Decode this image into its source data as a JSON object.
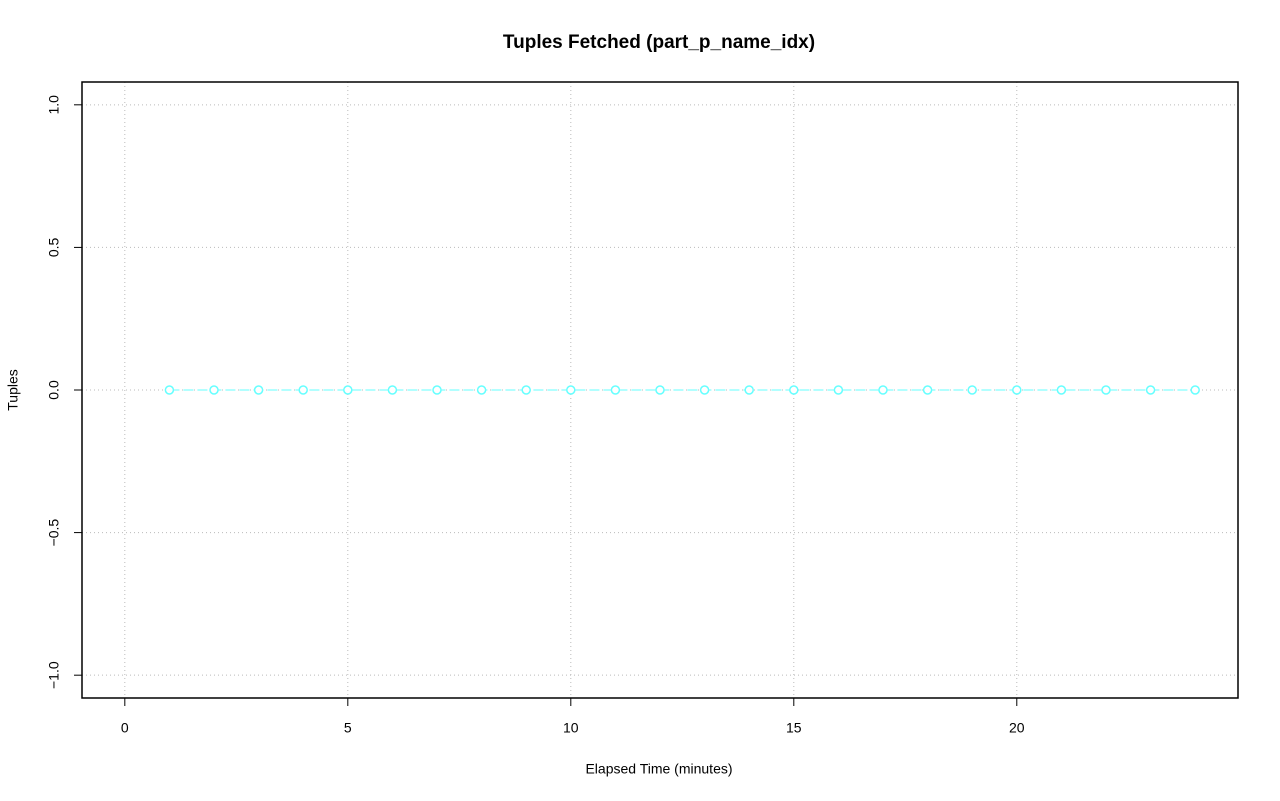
{
  "chart_data": {
    "type": "line",
    "title": "Tuples Fetched (part_p_name_idx)",
    "x_label": "Elapsed Time (minutes)",
    "y_label": "Tuples",
    "x": [
      1,
      2,
      3,
      4,
      5,
      6,
      7,
      8,
      9,
      10,
      11,
      12,
      13,
      14,
      15,
      16,
      17,
      18,
      19,
      20,
      21,
      22,
      23,
      24
    ],
    "values": [
      0,
      0,
      0,
      0,
      0,
      0,
      0,
      0,
      0,
      0,
      0,
      0,
      0,
      0,
      0,
      0,
      0,
      0,
      0,
      0,
      0,
      0,
      0,
      0
    ],
    "color": "#66ffff",
    "xlim": [
      -0.96,
      24.96
    ],
    "ylim": [
      -1.08,
      1.08
    ],
    "xticks": [
      0,
      5,
      10,
      15,
      20
    ],
    "yticks": [
      {
        "value": -1,
        "label": "−1.0"
      },
      {
        "value": -0.5,
        "label": "−0.5"
      },
      {
        "value": 0,
        "label": "0.0"
      },
      0.5,
      {
        "value": 1,
        "label": "1.0"
      }
    ],
    "grid": true
  }
}
